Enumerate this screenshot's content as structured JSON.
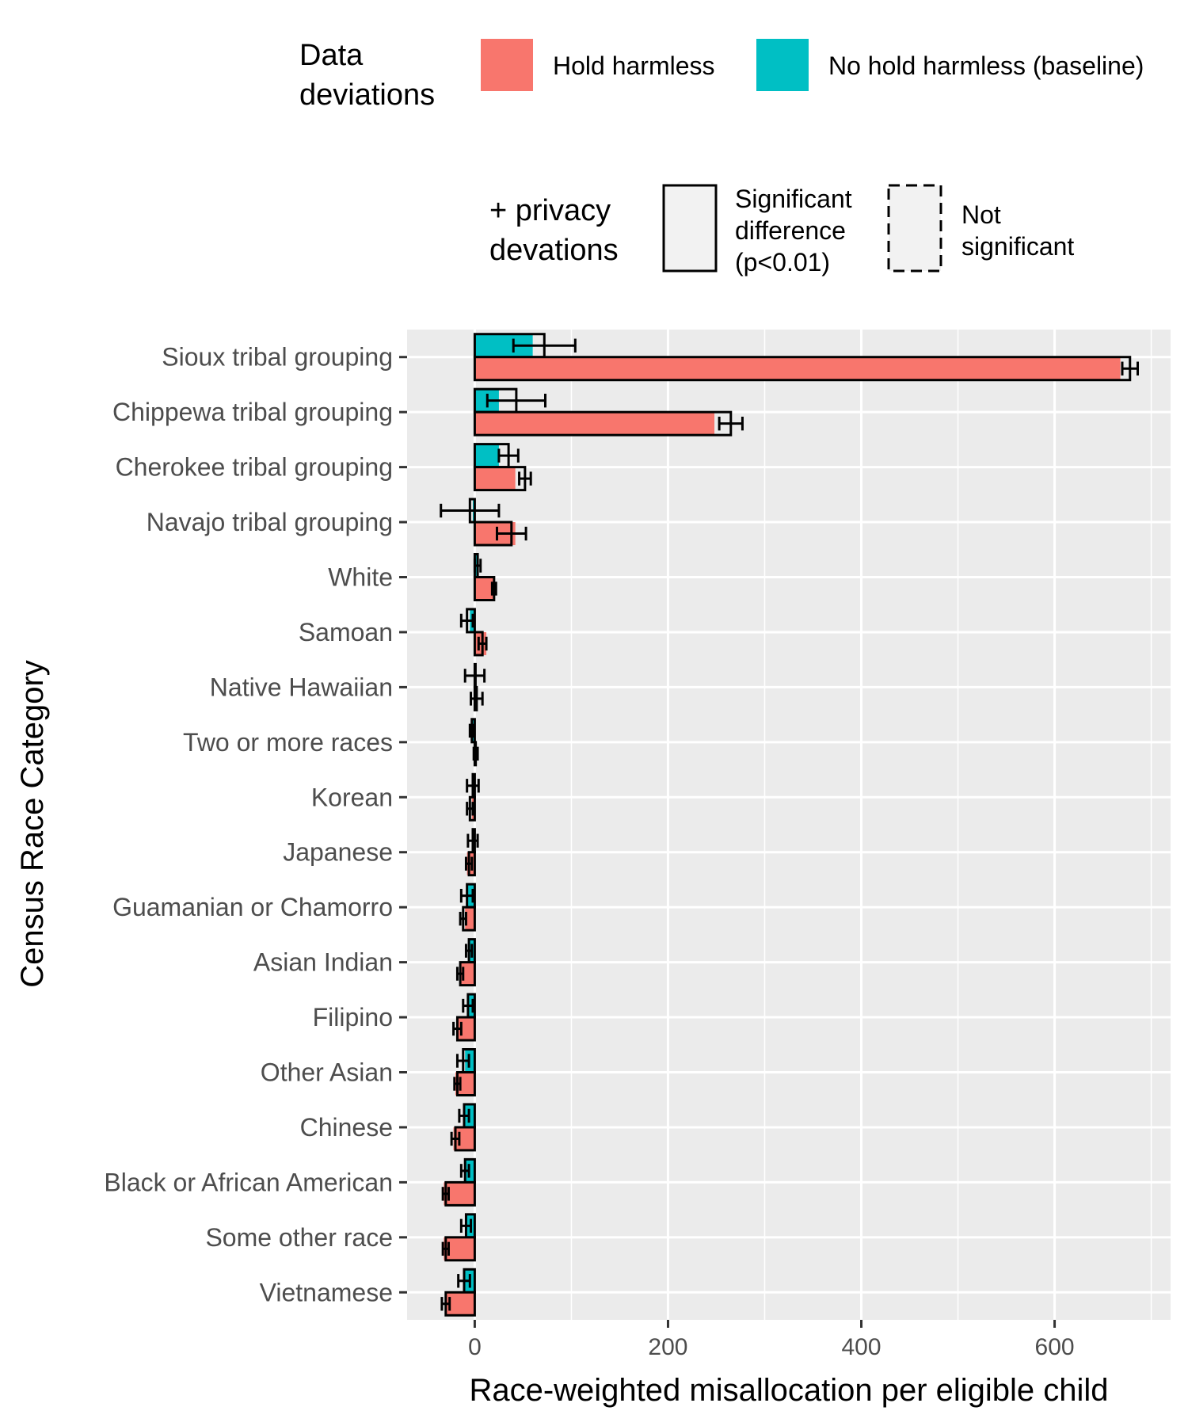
{
  "chart_data": {
    "type": "bar",
    "orientation": "horizontal",
    "xlabel": "Race-weighted misallocation per eligible child",
    "ylabel": "Census Race Category",
    "xlim": [
      -70,
      720
    ],
    "x_ticks": [
      0,
      200,
      400,
      600
    ],
    "grid": true,
    "legend_position": "top",
    "legends": {
      "fill": {
        "title": "Data deviations",
        "title_lines": [
          "Data",
          "deviations"
        ],
        "entries": [
          {
            "label": "Hold harmless",
            "color": "#F8766D"
          },
          {
            "label": "No hold harmless (baseline)",
            "color": "#00BFC4"
          }
        ]
      },
      "outline": {
        "title": "+ privacy devations",
        "title_lines": [
          "+ privacy",
          "devations"
        ],
        "entries": [
          {
            "label": "Significant difference (p<0.01)",
            "label_lines": [
              "Significant",
              "difference",
              "(p<0.01)"
            ],
            "linetype": "solid"
          },
          {
            "label": "Not significant",
            "label_lines": [
              "Not",
              "significant"
            ],
            "linetype": "dashed"
          }
        ]
      }
    },
    "categories": [
      "Sioux tribal grouping",
      "Chippewa tribal grouping",
      "Cherokee tribal grouping",
      "Navajo tribal grouping",
      "White",
      "Samoan",
      "Native Hawaiian",
      "Two or more races",
      "Korean",
      "Japanese",
      "Guamanian or Chamorro",
      "Asian Indian",
      "Filipino",
      "Other Asian",
      "Chinese",
      "Black or African American",
      "Some other race",
      "Vietnamese"
    ],
    "series": [
      {
        "name": "No hold harmless (baseline)",
        "color": "#00BFC4",
        "data_values": [
          60,
          25,
          25,
          -2,
          2,
          -5,
          1,
          -2,
          -1,
          -3,
          -7,
          -7,
          -8,
          -10,
          -10,
          -10,
          -10,
          -12
        ],
        "privacy_values": [
          72,
          43,
          35,
          -5,
          3,
          -8,
          0,
          -3,
          -2,
          -2,
          -8,
          -6,
          -7,
          -12,
          -11,
          -10,
          -9,
          -11
        ],
        "error": [
          32,
          30,
          10,
          30,
          3,
          6,
          10,
          2,
          6,
          5,
          6,
          3,
          5,
          6,
          5,
          4,
          5,
          6
        ],
        "significant": [
          true,
          true,
          true,
          true,
          true,
          true,
          true,
          true,
          true,
          true,
          true,
          true,
          true,
          true,
          true,
          true,
          true,
          true
        ]
      },
      {
        "name": "Hold harmless",
        "color": "#F8766D",
        "data_values": [
          668,
          248,
          42,
          42,
          20,
          12,
          2,
          1,
          -3,
          -8,
          -10,
          -15,
          -18,
          -20,
          -22,
          -32,
          -32,
          -30
        ],
        "privacy_values": [
          678,
          265,
          52,
          38,
          20,
          8,
          2,
          1,
          -5,
          -6,
          -12,
          -15,
          -18,
          -18,
          -20,
          -30,
          -30,
          -30
        ],
        "error": [
          8,
          12,
          6,
          15,
          2,
          4,
          6,
          2,
          3,
          3,
          3,
          3,
          4,
          3,
          4,
          3,
          3,
          4
        ],
        "significant": [
          true,
          true,
          true,
          true,
          true,
          true,
          true,
          true,
          true,
          true,
          true,
          true,
          true,
          true,
          true,
          true,
          true,
          true
        ]
      }
    ]
  }
}
